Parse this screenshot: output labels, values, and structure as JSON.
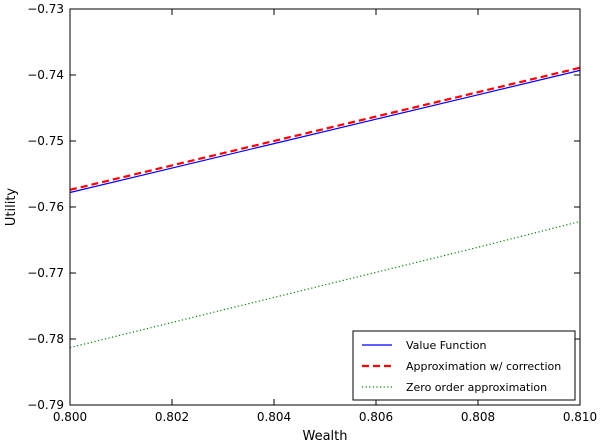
{
  "chart_data": {
    "type": "line",
    "title": "",
    "xlabel": "Wealth",
    "ylabel": "Utility",
    "xlim": [
      0.8,
      0.81
    ],
    "ylim": [
      -0.79,
      -0.73
    ],
    "x_ticks": [
      0.8,
      0.802,
      0.804,
      0.806,
      0.808,
      0.81
    ],
    "x_tick_labels": [
      "0.800",
      "0.802",
      "0.804",
      "0.806",
      "0.808",
      "0.810"
    ],
    "y_ticks": [
      -0.79,
      -0.78,
      -0.77,
      -0.76,
      -0.75,
      -0.74,
      -0.73
    ],
    "y_tick_labels": [
      "−0.79",
      "−0.78",
      "−0.77",
      "−0.76",
      "−0.75",
      "−0.74",
      "−0.73"
    ],
    "grid": false,
    "legend_position": "bottom-right",
    "series": [
      {
        "name": "Value Function",
        "color": "#0000ff",
        "style": "solid",
        "x": [
          0.8,
          0.802,
          0.804,
          0.806,
          0.808,
          0.81
        ],
        "y": [
          -0.7578,
          -0.7541,
          -0.7504,
          -0.7467,
          -0.743,
          -0.7393
        ]
      },
      {
        "name": "Approximation w/ correction",
        "color": "#ff0000",
        "style": "dashed",
        "x": [
          0.8,
          0.802,
          0.804,
          0.806,
          0.808,
          0.81
        ],
        "y": [
          -0.7574,
          -0.7537,
          -0.75,
          -0.7463,
          -0.7426,
          -0.7389
        ]
      },
      {
        "name": "Zero order approximation",
        "color": "#008000",
        "style": "dotted",
        "x": [
          0.8,
          0.802,
          0.804,
          0.806,
          0.808,
          0.81
        ],
        "y": [
          -0.7813,
          -0.7775,
          -0.7737,
          -0.7699,
          -0.7661,
          -0.7622
        ]
      }
    ]
  }
}
